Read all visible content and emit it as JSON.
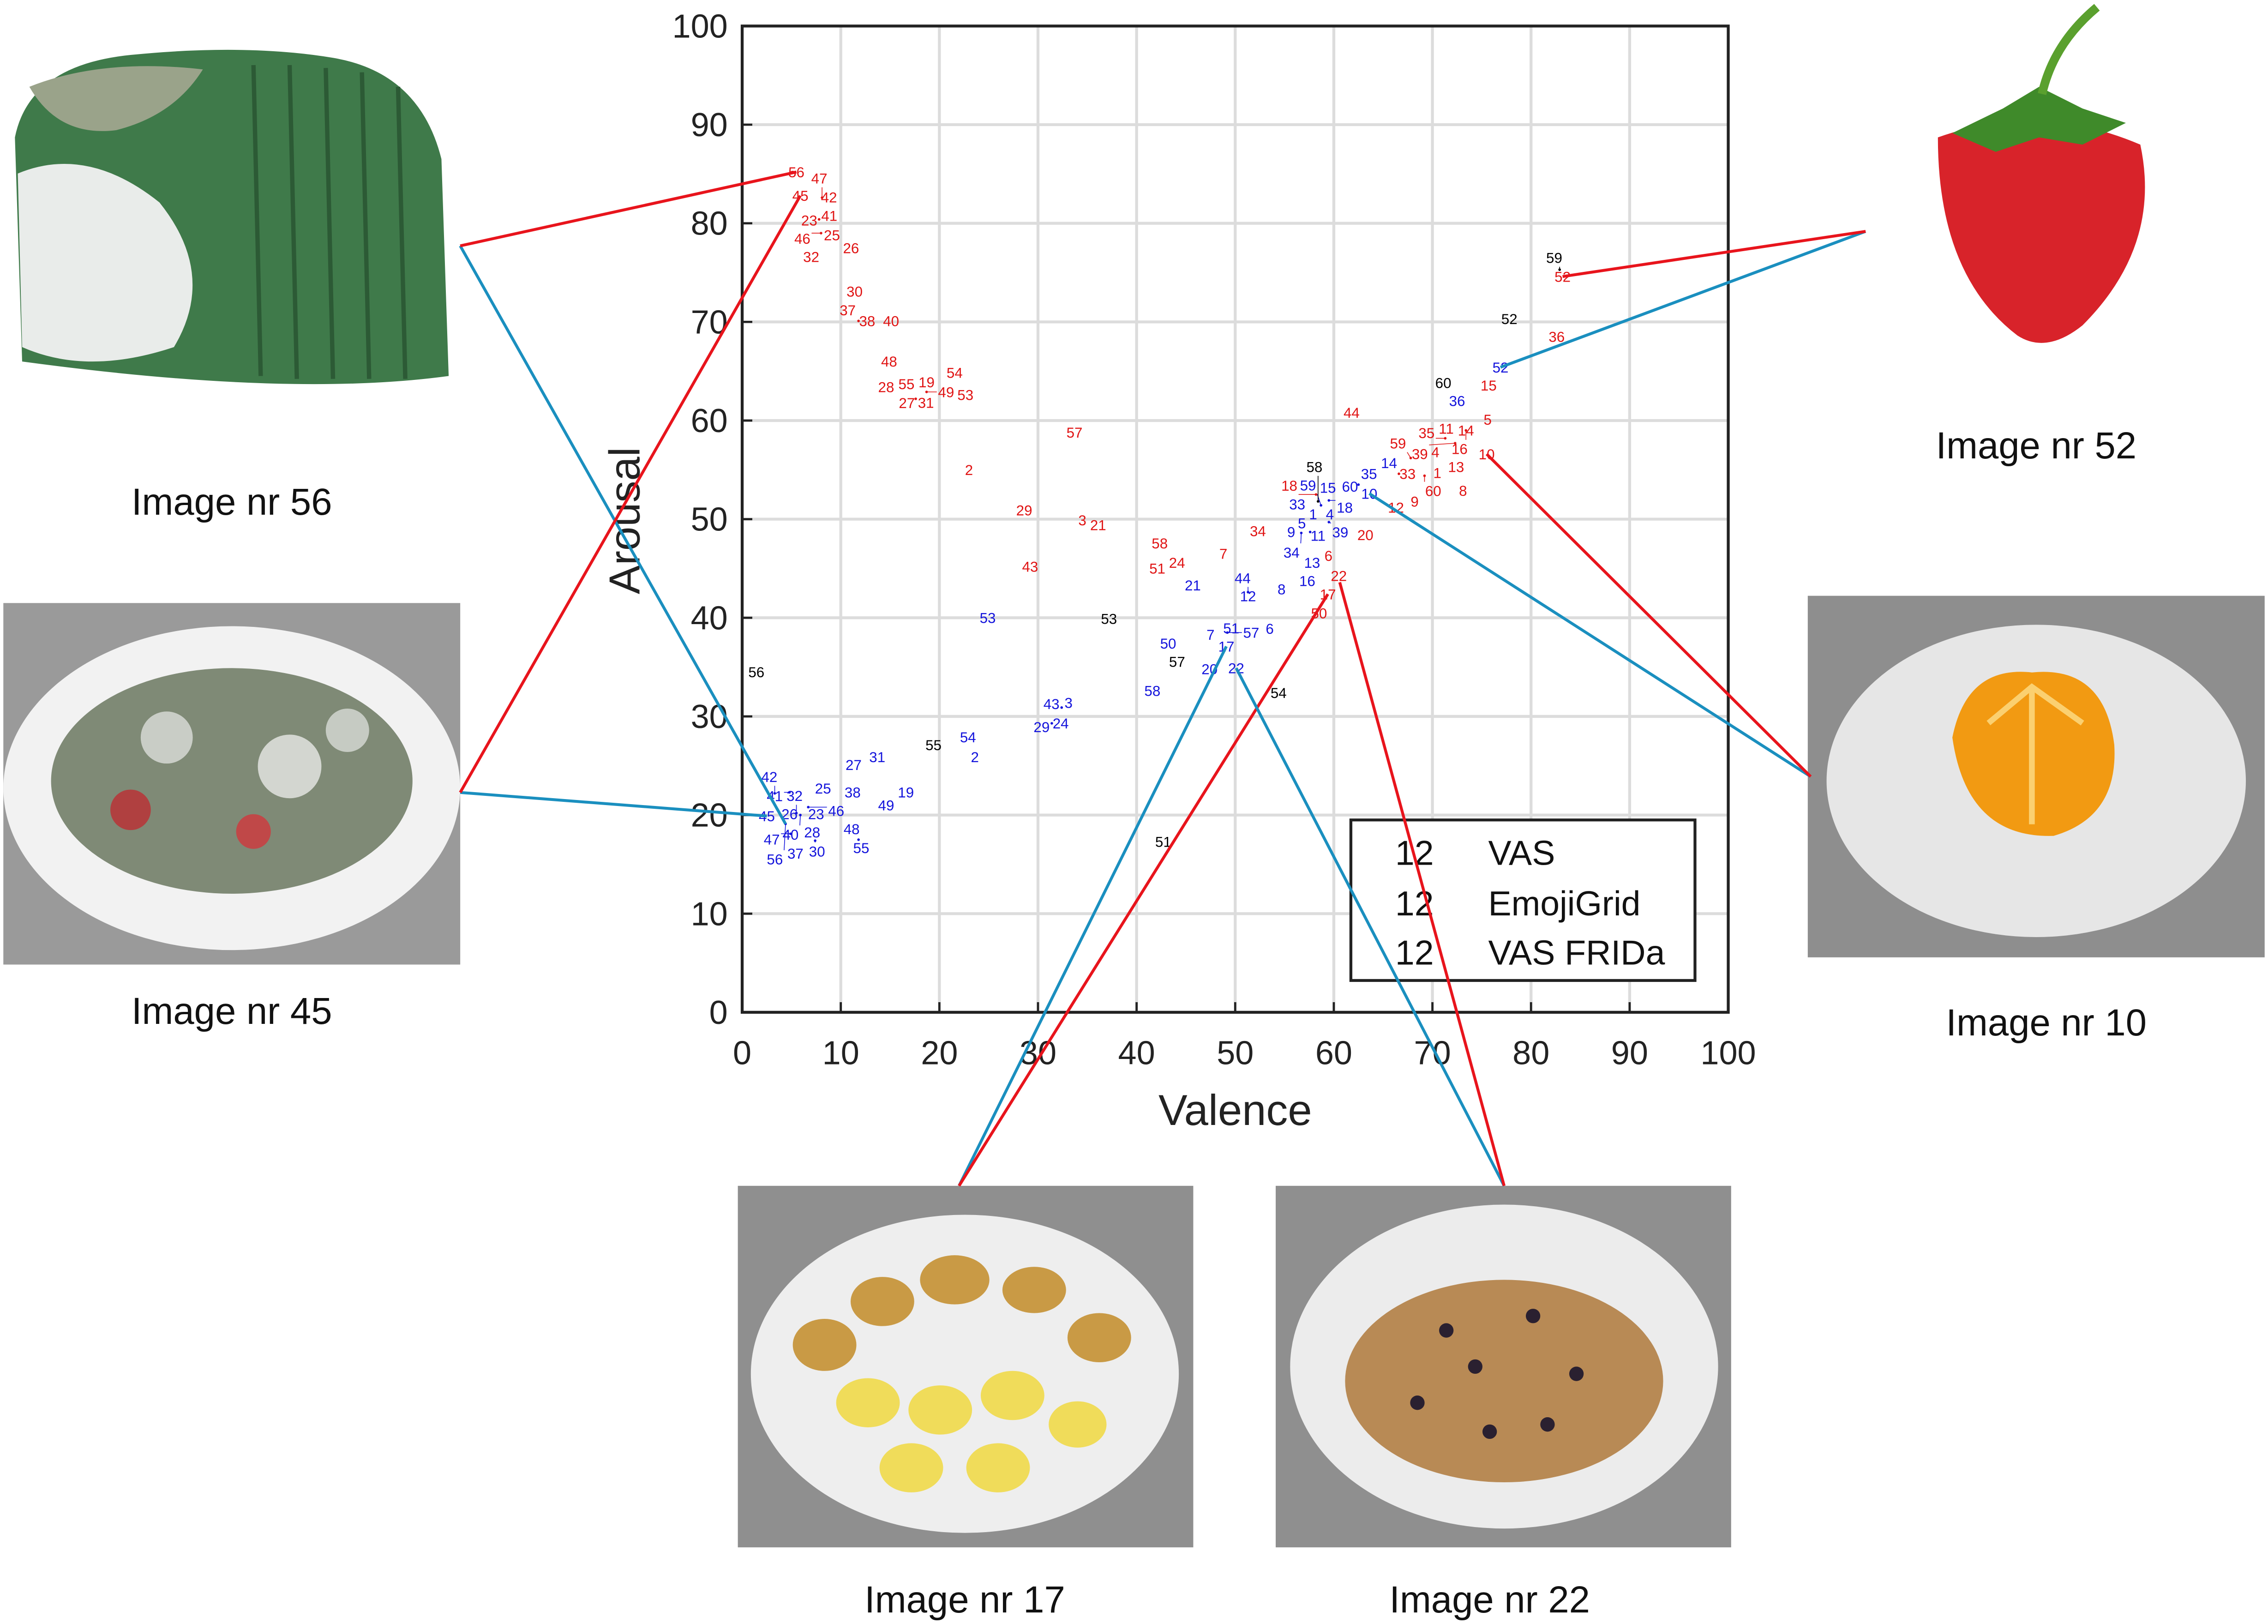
{
  "colors": {
    "vas": "#1414dc",
    "emojigrid": "#e01414",
    "frida": "#000000",
    "connector_red": "#e8141c",
    "connector_blue": "#1a8fbf",
    "grid": "#dcdcdc"
  },
  "chart_data": {
    "type": "scatter",
    "marker": "text-label",
    "xlabel": "Valence",
    "ylabel": "Arousal",
    "xlim": [
      0,
      100
    ],
    "ylim": [
      0,
      100
    ],
    "xticks": [
      0,
      10,
      20,
      30,
      40,
      50,
      60,
      70,
      80,
      90,
      100
    ],
    "yticks": [
      0,
      10,
      20,
      30,
      40,
      50,
      60,
      70,
      80,
      90,
      100
    ],
    "grid": true,
    "legend": {
      "placement": "bottom-right",
      "sample": "12",
      "entries": [
        "VAS",
        "EmojiGrid",
        "VAS FRIDa"
      ]
    },
    "series": [
      {
        "name": "VAS",
        "color": "#1414dc",
        "points": [
          {
            "label": "1",
            "x": 57.9,
            "y": 50.5
          },
          {
            "label": "2",
            "x": 23.6,
            "y": 25.9
          },
          {
            "label": "3",
            "x": 33.1,
            "y": 31.4
          },
          {
            "label": "4",
            "x": 59.6,
            "y": 50.5
          },
          {
            "label": "5",
            "x": 57.2,
            "y": 49.6
          },
          {
            "label": "6",
            "x": 53.5,
            "y": 38.9
          },
          {
            "label": "7",
            "x": 47.5,
            "y": 38.3
          },
          {
            "label": "8",
            "x": 54.7,
            "y": 42.9
          },
          {
            "label": "9",
            "x": 55.9,
            "y": 48.7
          },
          {
            "label": "10",
            "x": 63.6,
            "y": 52.6
          },
          {
            "label": "11",
            "x": 57.6,
            "y": 48.7
          },
          {
            "label": "12",
            "x": 51.3,
            "y": 42.2
          },
          {
            "label": "13",
            "x": 57.8,
            "y": 45.6
          },
          {
            "label": "14",
            "x": 65.6,
            "y": 55.7
          },
          {
            "label": "15",
            "x": 59.4,
            "y": 53.2
          },
          {
            "label": "16",
            "x": 57.4,
            "y": 44.4
          },
          {
            "label": "17",
            "x": 49.1,
            "y": 37.1
          },
          {
            "label": "18",
            "x": 59.5,
            "y": 51.9
          },
          {
            "label": "19",
            "x": 16.6,
            "y": 22.3
          },
          {
            "label": "20",
            "x": 47.4,
            "y": 34.8
          },
          {
            "label": "21",
            "x": 45.7,
            "y": 43.3
          },
          {
            "label": "22",
            "x": 50.1,
            "y": 34.9
          },
          {
            "label": "23",
            "x": 7.5,
            "y": 20.1
          },
          {
            "label": "24",
            "x": 32.3,
            "y": 29.3
          },
          {
            "label": "25",
            "x": 8.2,
            "y": 22.7
          },
          {
            "label": "26",
            "x": 4.8,
            "y": 20.1
          },
          {
            "label": "27",
            "x": 11.3,
            "y": 25.1
          },
          {
            "label": "28",
            "x": 7.1,
            "y": 18.7
          },
          {
            "label": "29",
            "x": 31.4,
            "y": 29.3
          },
          {
            "label": "30",
            "x": 7.4,
            "y": 17.4
          },
          {
            "label": "31",
            "x": 13.7,
            "y": 25.9
          },
          {
            "label": "32",
            "x": 5.5,
            "y": 20.2
          },
          {
            "label": "33",
            "x": 56.6,
            "y": 51.2
          },
          {
            "label": "34",
            "x": 56.7,
            "y": 48.6
          },
          {
            "label": "35",
            "x": 64.2,
            "y": 54.8
          },
          {
            "label": "36",
            "x": 72.5,
            "y": 62.0
          },
          {
            "label": "37",
            "x": 5.4,
            "y": 16.1
          },
          {
            "label": "38",
            "x": 11.2,
            "y": 22.3
          },
          {
            "label": "39",
            "x": 59.5,
            "y": 49.7
          },
          {
            "label": "40",
            "x": 5.9,
            "y": 20.0
          },
          {
            "label": "41",
            "x": 4.8,
            "y": 22.3
          },
          {
            "label": "42",
            "x": 3.3,
            "y": 22.2
          },
          {
            "label": "43",
            "x": 32.4,
            "y": 30.9
          },
          {
            "label": "44",
            "x": 51.3,
            "y": 42.6
          },
          {
            "label": "45",
            "x": 2.5,
            "y": 19.9
          },
          {
            "label": "46",
            "x": 6.7,
            "y": 20.8
          },
          {
            "label": "47",
            "x": 4.9,
            "y": 18.1
          },
          {
            "label": "48",
            "x": 11.1,
            "y": 18.8
          },
          {
            "label": "49",
            "x": 14.6,
            "y": 21.0
          },
          {
            "label": "50",
            "x": 43.2,
            "y": 37.4
          },
          {
            "label": "51",
            "x": 49.6,
            "y": 38.5
          },
          {
            "label": "52",
            "x": 76.9,
            "y": 65.4
          },
          {
            "label": "53",
            "x": 24.9,
            "y": 40.0
          },
          {
            "label": "54",
            "x": 22.9,
            "y": 27.9
          },
          {
            "label": "55",
            "x": 11.8,
            "y": 17.5
          },
          {
            "label": "56",
            "x": 4.4,
            "y": 19.1
          },
          {
            "label": "57",
            "x": 49.2,
            "y": 38.5
          },
          {
            "label": "58",
            "x": 41.6,
            "y": 32.6
          },
          {
            "label": "59",
            "x": 58.7,
            "y": 51.4
          },
          {
            "label": "60",
            "x": 62.5,
            "y": 53.5
          }
        ]
      },
      {
        "name": "EmojiGrid",
        "color": "#e01414",
        "points": [
          {
            "label": "1",
            "x": 70.5,
            "y": 54.7
          },
          {
            "label": "2",
            "x": 23.0,
            "y": 55.0
          },
          {
            "label": "3",
            "x": 34.5,
            "y": 49.9
          },
          {
            "label": "4",
            "x": 70.3,
            "y": 56.8
          },
          {
            "label": "5",
            "x": 75.6,
            "y": 60.1
          },
          {
            "label": "6",
            "x": 58.8,
            "y": 46.3
          },
          {
            "label": "7",
            "x": 48.8,
            "y": 46.5
          },
          {
            "label": "8",
            "x": 73.1,
            "y": 52.9
          },
          {
            "label": "9",
            "x": 68.2,
            "y": 51.8
          },
          {
            "label": "10",
            "x": 75.5,
            "y": 56.6
          },
          {
            "label": "11",
            "x": 71.4,
            "y": 59.2
          },
          {
            "label": "12",
            "x": 66.3,
            "y": 51.2
          },
          {
            "label": "13",
            "x": 72.4,
            "y": 55.3
          },
          {
            "label": "14",
            "x": 73.4,
            "y": 59.0
          },
          {
            "label": "15",
            "x": 75.7,
            "y": 63.8
          },
          {
            "label": "16",
            "x": 73.4,
            "y": 59.0
          },
          {
            "label": "17",
            "x": 59.4,
            "y": 42.4
          },
          {
            "label": "18",
            "x": 58.2,
            "y": 52.5
          },
          {
            "label": "19",
            "x": 18.7,
            "y": 63.9
          },
          {
            "label": "20",
            "x": 63.2,
            "y": 48.4
          },
          {
            "label": "21",
            "x": 36.1,
            "y": 49.4
          },
          {
            "label": "22",
            "x": 60.6,
            "y": 43.6
          },
          {
            "label": "23",
            "x": 6.8,
            "y": 80.3
          },
          {
            "label": "24",
            "x": 44.1,
            "y": 45.6
          },
          {
            "label": "25",
            "x": 9.1,
            "y": 78.8
          },
          {
            "label": "26",
            "x": 10.6,
            "y": 77.5
          },
          {
            "label": "27",
            "x": 16.7,
            "y": 61.8
          },
          {
            "label": "28",
            "x": 14.6,
            "y": 63.4
          },
          {
            "label": "29",
            "x": 28.6,
            "y": 50.9
          },
          {
            "label": "30",
            "x": 11.4,
            "y": 73.1
          },
          {
            "label": "31",
            "x": 17.6,
            "y": 62.2
          },
          {
            "label": "32",
            "x": 7.0,
            "y": 76.6
          },
          {
            "label": "33",
            "x": 66.6,
            "y": 54.6
          },
          {
            "label": "34",
            "x": 52.3,
            "y": 48.8
          },
          {
            "label": "35",
            "x": 71.3,
            "y": 58.2
          },
          {
            "label": "36",
            "x": 82.6,
            "y": 68.5
          },
          {
            "label": "37",
            "x": 10.7,
            "y": 71.2
          },
          {
            "label": "38",
            "x": 11.8,
            "y": 70.1
          },
          {
            "label": "39",
            "x": 72.3,
            "y": 57.7
          },
          {
            "label": "40",
            "x": 15.1,
            "y": 70.1
          },
          {
            "label": "41",
            "x": 7.8,
            "y": 80.4
          },
          {
            "label": "42",
            "x": 8.9,
            "y": 82.0
          },
          {
            "label": "43",
            "x": 29.2,
            "y": 45.2
          },
          {
            "label": "44",
            "x": 61.8,
            "y": 60.8
          },
          {
            "label": "45",
            "x": 5.9,
            "y": 82.8
          },
          {
            "label": "46",
            "x": 8.0,
            "y": 79.0
          },
          {
            "label": "47",
            "x": 8.1,
            "y": 82.6
          },
          {
            "label": "48",
            "x": 14.9,
            "y": 66.0
          },
          {
            "label": "49",
            "x": 18.7,
            "y": 62.9
          },
          {
            "label": "50",
            "x": 58.5,
            "y": 40.9
          },
          {
            "label": "51",
            "x": 42.1,
            "y": 45.0
          },
          {
            "label": "52",
            "x": 83.2,
            "y": 74.6
          },
          {
            "label": "53",
            "x": 22.2,
            "y": 62.6
          },
          {
            "label": "54",
            "x": 21.7,
            "y": 64.7
          },
          {
            "label": "55",
            "x": 16.0,
            "y": 63.7
          },
          {
            "label": "56",
            "x": 5.5,
            "y": 85.2
          },
          {
            "label": "57",
            "x": 33.7,
            "y": 58.8
          },
          {
            "label": "58",
            "x": 42.5,
            "y": 47.4
          },
          {
            "label": "59",
            "x": 67.8,
            "y": 56.2
          },
          {
            "label": "60",
            "x": 69.2,
            "y": 54.4
          }
        ]
      },
      {
        "name": "VAS FRIDa",
        "color": "#000000",
        "points": [
          {
            "label": "51",
            "x": 42.7,
            "y": 17.3
          },
          {
            "label": "52",
            "x": 77.8,
            "y": 70.3
          },
          {
            "label": "53",
            "x": 37.2,
            "y": 39.9
          },
          {
            "label": "54",
            "x": 54.4,
            "y": 32.4
          },
          {
            "label": "55",
            "x": 19.4,
            "y": 27.1
          },
          {
            "label": "56",
            "x": 1.0,
            "y": 34.5
          },
          {
            "label": "57",
            "x": 44.2,
            "y": 36.2
          },
          {
            "label": "58",
            "x": 58.4,
            "y": 51.8
          },
          {
            "label": "59",
            "x": 82.9,
            "y": 75.3
          },
          {
            "label": "60",
            "x": 71.1,
            "y": 63.6
          }
        ]
      }
    ]
  },
  "images": [
    {
      "id": "56",
      "caption": "Image nr 56",
      "depicts": "moldy-bread-icon"
    },
    {
      "id": "45",
      "caption": "Image nr 45",
      "depicts": "moldy-strawberries-plate-icon"
    },
    {
      "id": "52",
      "caption": "Image nr 52",
      "depicts": "strawberry-icon"
    },
    {
      "id": "10",
      "caption": "Image nr 10",
      "depicts": "orange-plate-icon"
    },
    {
      "id": "17",
      "caption": "Image nr 17",
      "depicts": "potatoes-plate-icon"
    },
    {
      "id": "22",
      "caption": "Image nr 22",
      "depicts": "muesli-plate-icon"
    }
  ]
}
